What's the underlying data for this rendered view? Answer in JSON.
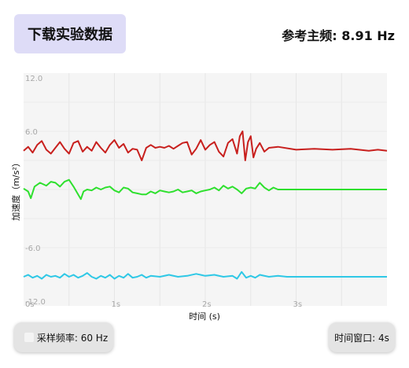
{
  "header": {
    "download_label": "下载实验数据",
    "ref_freq_label": "参考主频: 8.91 Hz"
  },
  "footer": {
    "sample_rate_label": "采样频率: 60 Hz",
    "time_window_label": "时间窗口: 4s"
  },
  "colors": {
    "series_top": "#c8201e",
    "series_mid": "#2ee02e",
    "series_bottom": "#2ec8e6",
    "download_bg": "#dedcf7"
  },
  "chart_data": {
    "type": "line",
    "xlabel": "时间 (s)",
    "ylabel": "加速度（m/s²）",
    "xlim": [
      0,
      4
    ],
    "ylim": [
      -12,
      12
    ],
    "x_ticks": [
      "0s",
      "1s",
      "2s",
      "3s"
    ],
    "y_ticks": [
      "12.0",
      "6.0",
      "-6.0",
      "-12.0"
    ],
    "series": [
      {
        "color": "#c8201e",
        "points": [
          [
            0.0,
            4.0
          ],
          [
            0.05,
            4.4
          ],
          [
            0.1,
            3.8
          ],
          [
            0.15,
            4.6
          ],
          [
            0.2,
            5.0
          ],
          [
            0.25,
            4.1
          ],
          [
            0.3,
            3.7
          ],
          [
            0.35,
            4.3
          ],
          [
            0.4,
            4.9
          ],
          [
            0.45,
            4.2
          ],
          [
            0.5,
            3.7
          ],
          [
            0.55,
            4.8
          ],
          [
            0.6,
            5.0
          ],
          [
            0.65,
            3.9
          ],
          [
            0.7,
            4.4
          ],
          [
            0.75,
            4.0
          ],
          [
            0.8,
            4.9
          ],
          [
            0.85,
            4.3
          ],
          [
            0.9,
            3.8
          ],
          [
            0.95,
            4.6
          ],
          [
            1.0,
            5.1
          ],
          [
            1.05,
            4.3
          ],
          [
            1.1,
            4.7
          ],
          [
            1.15,
            3.8
          ],
          [
            1.2,
            4.2
          ],
          [
            1.25,
            4.1
          ],
          [
            1.3,
            3.0
          ],
          [
            1.35,
            4.3
          ],
          [
            1.4,
            4.6
          ],
          [
            1.45,
            4.3
          ],
          [
            1.5,
            4.4
          ],
          [
            1.55,
            4.3
          ],
          [
            1.6,
            4.5
          ],
          [
            1.65,
            4.2
          ],
          [
            1.7,
            4.5
          ],
          [
            1.75,
            4.8
          ],
          [
            1.8,
            4.9
          ],
          [
            1.85,
            3.6
          ],
          [
            1.9,
            4.2
          ],
          [
            1.95,
            5.1
          ],
          [
            2.0,
            4.1
          ],
          [
            2.05,
            4.6
          ],
          [
            2.1,
            4.9
          ],
          [
            2.15,
            3.9
          ],
          [
            2.2,
            3.4
          ],
          [
            2.25,
            4.8
          ],
          [
            2.3,
            5.2
          ],
          [
            2.35,
            3.7
          ],
          [
            2.38,
            5.5
          ],
          [
            2.41,
            6.0
          ],
          [
            2.44,
            3.0
          ],
          [
            2.47,
            4.9
          ],
          [
            2.5,
            5.5
          ],
          [
            2.53,
            3.3
          ],
          [
            2.56,
            4.2
          ],
          [
            2.6,
            4.8
          ],
          [
            2.65,
            3.9
          ],
          [
            2.7,
            4.3
          ],
          [
            2.8,
            4.4
          ],
          [
            3.0,
            4.1
          ],
          [
            3.2,
            4.2
          ],
          [
            3.4,
            4.1
          ],
          [
            3.6,
            4.2
          ],
          [
            3.8,
            4.0
          ],
          [
            3.9,
            4.1
          ],
          [
            4.0,
            4.0
          ]
        ]
      },
      {
        "color": "#2ee02e",
        "points": [
          [
            0.0,
            0.1
          ],
          [
            0.05,
            -0.2
          ],
          [
            0.08,
            -0.9
          ],
          [
            0.12,
            0.3
          ],
          [
            0.18,
            0.7
          ],
          [
            0.25,
            0.4
          ],
          [
            0.3,
            0.8
          ],
          [
            0.35,
            0.7
          ],
          [
            0.4,
            0.3
          ],
          [
            0.45,
            0.8
          ],
          [
            0.5,
            1.0
          ],
          [
            0.55,
            0.3
          ],
          [
            0.6,
            -0.5
          ],
          [
            0.63,
            -1.0
          ],
          [
            0.66,
            -0.2
          ],
          [
            0.7,
            0.0
          ],
          [
            0.75,
            -0.1
          ],
          [
            0.8,
            0.2
          ],
          [
            0.85,
            0.0
          ],
          [
            0.9,
            0.2
          ],
          [
            0.95,
            0.3
          ],
          [
            1.0,
            -0.1
          ],
          [
            1.05,
            -0.3
          ],
          [
            1.1,
            0.2
          ],
          [
            1.15,
            0.1
          ],
          [
            1.2,
            -0.3
          ],
          [
            1.25,
            -0.4
          ],
          [
            1.3,
            -0.5
          ],
          [
            1.35,
            -0.5
          ],
          [
            1.4,
            -0.2
          ],
          [
            1.45,
            -0.4
          ],
          [
            1.5,
            -0.1
          ],
          [
            1.55,
            -0.2
          ],
          [
            1.6,
            -0.3
          ],
          [
            1.65,
            -0.2
          ],
          [
            1.7,
            0.0
          ],
          [
            1.75,
            -0.3
          ],
          [
            1.8,
            -0.2
          ],
          [
            1.85,
            -0.1
          ],
          [
            1.9,
            -0.4
          ],
          [
            1.95,
            -0.2
          ],
          [
            2.0,
            -0.1
          ],
          [
            2.05,
            0.0
          ],
          [
            2.1,
            0.2
          ],
          [
            2.15,
            -0.1
          ],
          [
            2.2,
            0.4
          ],
          [
            2.25,
            0.1
          ],
          [
            2.3,
            0.3
          ],
          [
            2.35,
            0.0
          ],
          [
            2.4,
            -0.4
          ],
          [
            2.45,
            0.1
          ],
          [
            2.5,
            0.2
          ],
          [
            2.55,
            0.1
          ],
          [
            2.6,
            0.7
          ],
          [
            2.65,
            0.2
          ],
          [
            2.7,
            -0.1
          ],
          [
            2.75,
            0.2
          ],
          [
            2.8,
            0.0
          ],
          [
            3.0,
            0.0
          ],
          [
            3.2,
            0.0
          ],
          [
            3.4,
            0.0
          ],
          [
            3.6,
            0.0
          ],
          [
            3.8,
            0.0
          ],
          [
            4.0,
            0.0
          ]
        ]
      },
      {
        "color": "#2ec8e6",
        "points": [
          [
            0.0,
            -9.0
          ],
          [
            0.05,
            -8.8
          ],
          [
            0.1,
            -9.1
          ],
          [
            0.15,
            -8.9
          ],
          [
            0.2,
            -9.2
          ],
          [
            0.25,
            -8.8
          ],
          [
            0.3,
            -9.0
          ],
          [
            0.35,
            -8.9
          ],
          [
            0.4,
            -9.1
          ],
          [
            0.45,
            -8.7
          ],
          [
            0.5,
            -9.0
          ],
          [
            0.55,
            -8.8
          ],
          [
            0.6,
            -9.1
          ],
          [
            0.65,
            -8.9
          ],
          [
            0.7,
            -8.6
          ],
          [
            0.75,
            -9.0
          ],
          [
            0.8,
            -9.2
          ],
          [
            0.85,
            -8.9
          ],
          [
            0.9,
            -9.1
          ],
          [
            0.95,
            -8.8
          ],
          [
            1.0,
            -9.2
          ],
          [
            1.05,
            -8.9
          ],
          [
            1.1,
            -9.1
          ],
          [
            1.15,
            -8.7
          ],
          [
            1.2,
            -9.1
          ],
          [
            1.25,
            -9.0
          ],
          [
            1.3,
            -8.8
          ],
          [
            1.35,
            -9.1
          ],
          [
            1.4,
            -8.9
          ],
          [
            1.5,
            -9.0
          ],
          [
            1.6,
            -8.8
          ],
          [
            1.7,
            -9.0
          ],
          [
            1.8,
            -8.9
          ],
          [
            1.9,
            -8.7
          ],
          [
            2.0,
            -8.9
          ],
          [
            2.1,
            -8.8
          ],
          [
            2.2,
            -9.0
          ],
          [
            2.3,
            -8.9
          ],
          [
            2.35,
            -9.2
          ],
          [
            2.4,
            -8.5
          ],
          [
            2.45,
            -9.1
          ],
          [
            2.5,
            -8.9
          ],
          [
            2.55,
            -9.1
          ],
          [
            2.6,
            -8.8
          ],
          [
            2.7,
            -9.0
          ],
          [
            2.8,
            -8.9
          ],
          [
            2.9,
            -9.0
          ],
          [
            3.0,
            -9.0
          ],
          [
            3.2,
            -9.0
          ],
          [
            3.4,
            -9.0
          ],
          [
            3.6,
            -9.0
          ],
          [
            3.8,
            -9.0
          ],
          [
            4.0,
            -9.0
          ]
        ]
      }
    ]
  }
}
